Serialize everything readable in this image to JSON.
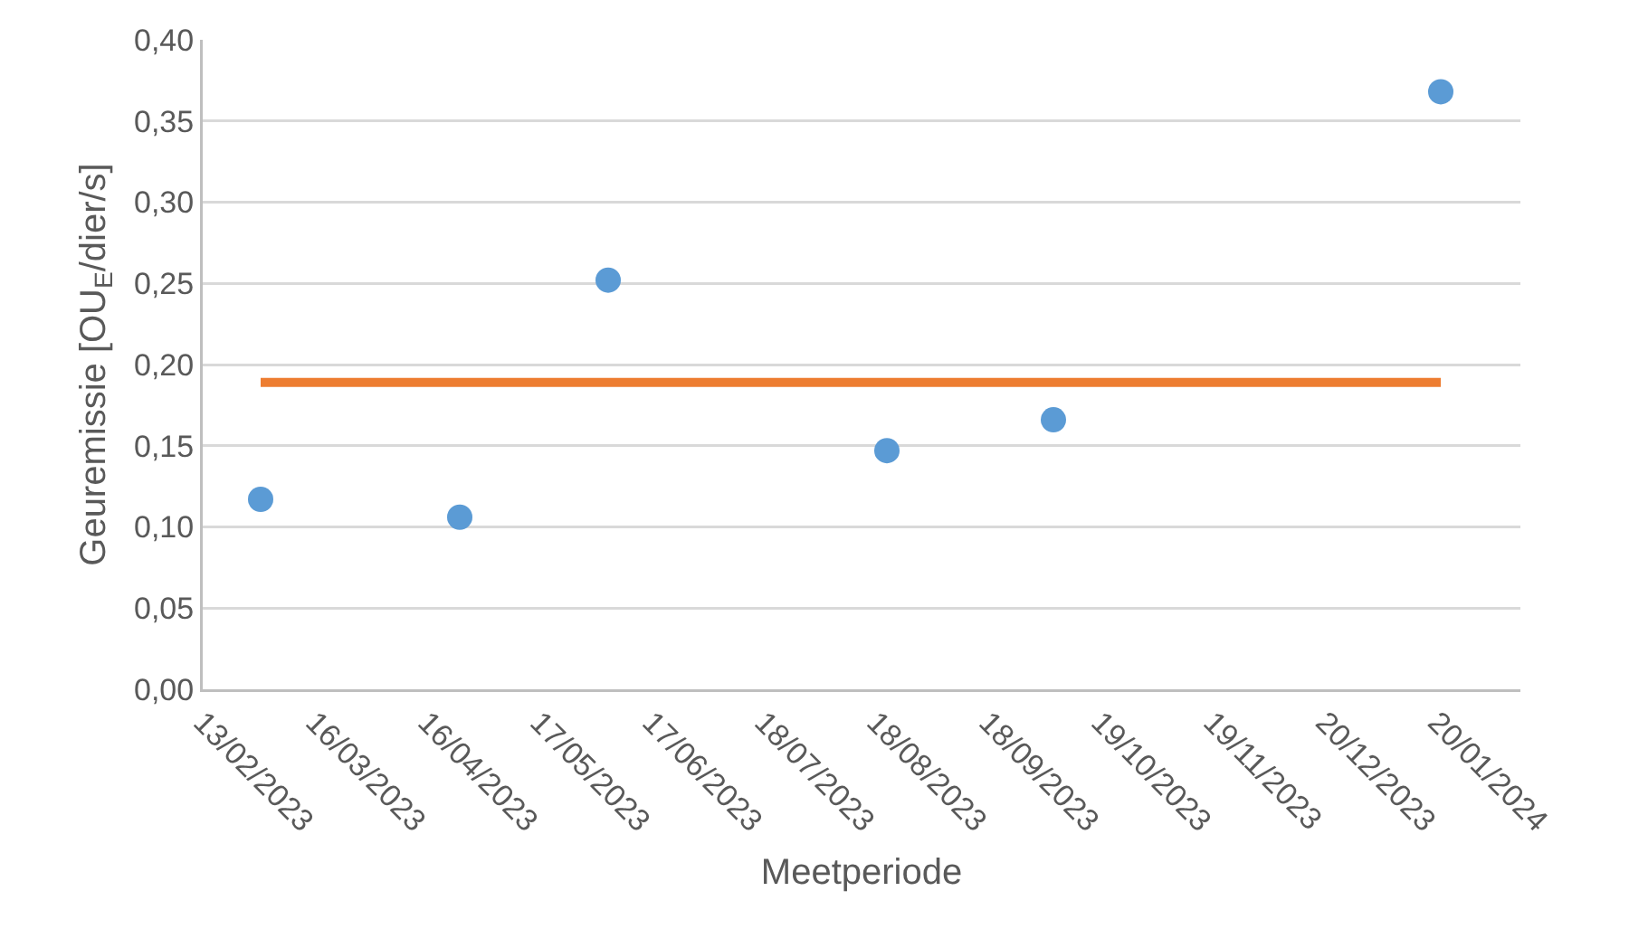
{
  "chart_data": {
    "type": "scatter",
    "xlabel": "Meetperiode",
    "ylabel": "Geuremissie [OU$_{E}$/dier/s]",
    "series": [
      {
        "color": "#5b9bd5",
        "marker": "circle",
        "x": [
          "2023-03-01",
          "2023-04-25",
          "2023-06-05",
          "2023-08-21",
          "2023-10-06",
          "2024-01-21"
        ],
        "values": [
          0.117,
          0.106,
          0.252,
          0.147,
          0.166,
          0.368
        ]
      },
      {
        "type": "line",
        "marker": "none",
        "color": "#ed7d31",
        "x": [
          "2023-03-01",
          "2024-01-21"
        ],
        "values": [
          0.189,
          0.189
        ]
      }
    ],
    "xlim": [
      "2023-02-13",
      "2024-02-12"
    ],
    "xticks": [
      {
        "value": "2023-02-13",
        "label": "13/02/2023"
      },
      {
        "value": "2023-03-16",
        "label": "16/03/2023"
      },
      {
        "value": "2023-04-16",
        "label": "16/04/2023"
      },
      {
        "value": "2023-05-17",
        "label": "17/05/2023"
      },
      {
        "value": "2023-06-17",
        "label": "17/06/2023"
      },
      {
        "value": "2023-07-18",
        "label": "18/07/2023"
      },
      {
        "value": "2023-08-18",
        "label": "18/08/2023"
      },
      {
        "value": "2023-09-18",
        "label": "18/09/2023"
      },
      {
        "value": "2023-10-19",
        "label": "19/10/2023"
      },
      {
        "value": "2023-11-19",
        "label": "19/11/2023"
      },
      {
        "value": "2023-12-20",
        "label": "20/12/2023"
      },
      {
        "value": "2024-01-20",
        "label": "20/01/2024"
      }
    ],
    "ylim": [
      0,
      0.4
    ],
    "yticks": [
      {
        "value": 0,
        "label": "0,00"
      },
      {
        "value": 0.05,
        "label": "0,05"
      },
      {
        "value": 0.1,
        "label": "0,10"
      },
      {
        "value": 0.15,
        "label": "0,15"
      },
      {
        "value": 0.2,
        "label": "0,20"
      },
      {
        "value": 0.25,
        "label": "0,25"
      },
      {
        "value": 0.3,
        "label": "0,30"
      },
      {
        "value": 0.35,
        "label": "0,35"
      },
      {
        "value": 0.4,
        "label": "0,40"
      }
    ],
    "grid": "y"
  }
}
